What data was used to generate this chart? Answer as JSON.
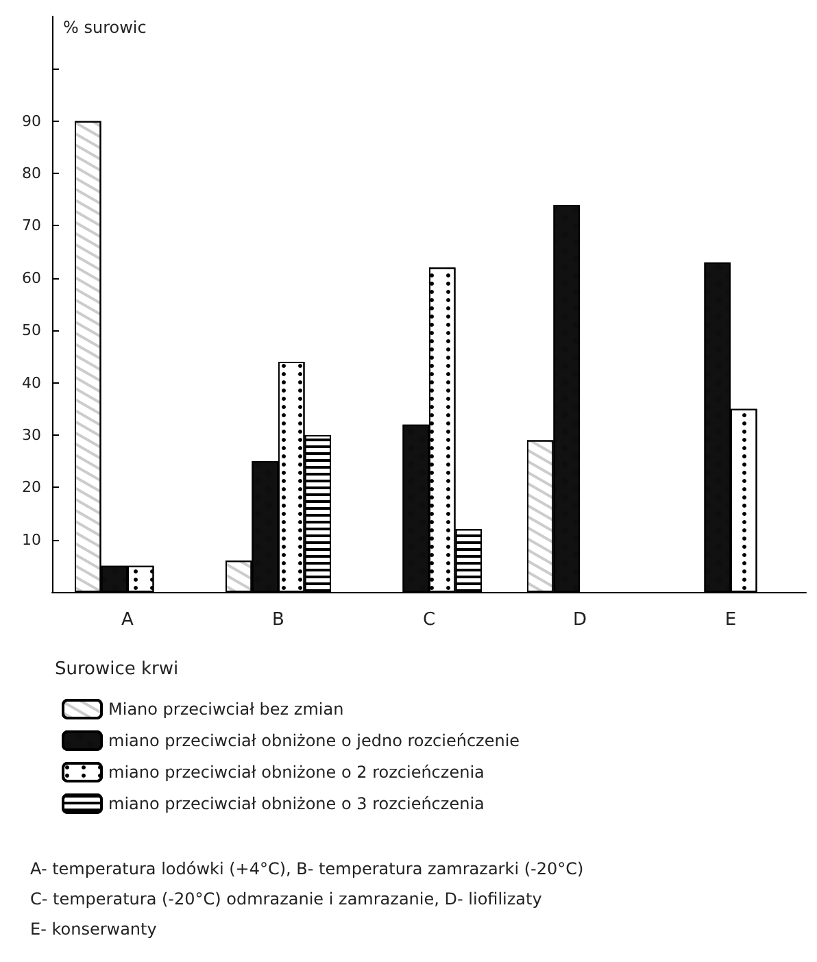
{
  "chart_data": {
    "type": "bar",
    "ylabel": "% surowic",
    "legend_title": "Surowice krwi",
    "categories": [
      "A",
      "B",
      "C",
      "D",
      "E"
    ],
    "series": [
      {
        "name": "Miano przeciwciał bez zmian",
        "color": "#ffffff",
        "values": [
          90,
          6,
          null,
          29,
          null
        ]
      },
      {
        "name": "miano przeciwciał obniżone o jedno rozcieńczenie",
        "color": "#111111",
        "values": [
          5,
          25,
          32,
          74,
          63
        ]
      },
      {
        "name": "miano przeciwciał obniżone o 2 rozcieńczenia",
        "color": "#ffffff",
        "values": [
          5,
          44,
          62,
          null,
          35
        ]
      },
      {
        "name": "miano przeciwciał obniżone o 3 rozcieńczenia",
        "color": "#ffffff",
        "values": [
          null,
          30,
          12,
          null,
          null
        ]
      }
    ],
    "ylim": [
      0,
      110
    ],
    "yticks": [
      10,
      20,
      30,
      40,
      50,
      60,
      70,
      80,
      90,
      {
        "value": 100,
        "label": null
      }
    ],
    "grid": false,
    "legend": "bottom",
    "annotations": [
      "A- temperatura lodówki (+4°C), B- temperatura zamrazarki (-20°C)",
      "C- temperatura (-20°C) odmrazanie i zamrazanie, D- liofilizaty",
      "E- konserwanty"
    ]
  }
}
